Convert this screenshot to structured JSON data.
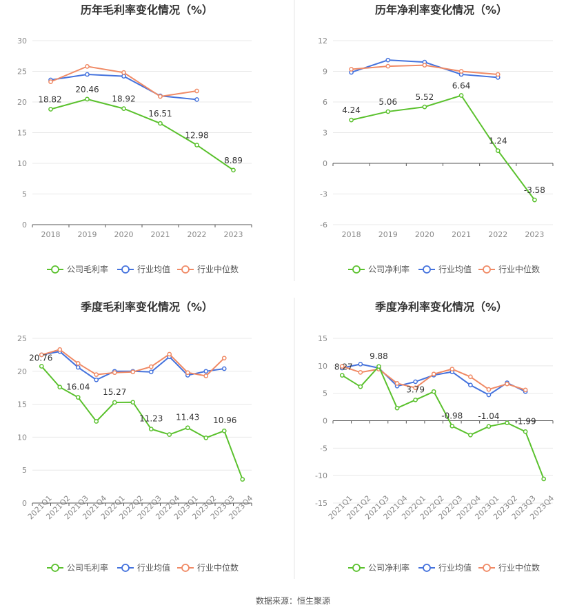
{
  "source_text": "数据来源：恒生聚源",
  "chart_data": [
    {
      "type": "line",
      "title": "历年毛利率变化情况（%）",
      "categories": [
        "2018",
        "2019",
        "2020",
        "2021",
        "2022",
        "2023"
      ],
      "ylim": [
        0,
        30
      ],
      "yticks": [
        0,
        5,
        10,
        15,
        20,
        25,
        30
      ],
      "grid": true,
      "legend_position": "bottom",
      "series": [
        {
          "name": "公司毛利率",
          "color": "#5ac12d",
          "values": [
            18.82,
            20.46,
            18.92,
            16.51,
            12.98,
            8.89
          ],
          "labels": [
            "18.82",
            "20.46",
            "18.92",
            "16.51",
            "12.98",
            "8.89"
          ]
        },
        {
          "name": "行业均值",
          "color": "#4472dd",
          "values": [
            23.6,
            24.5,
            24.2,
            21.0,
            20.4,
            null
          ]
        },
        {
          "name": "行业中位数",
          "color": "#f08a65",
          "values": [
            23.3,
            25.8,
            24.8,
            20.9,
            21.8,
            null
          ]
        }
      ]
    },
    {
      "type": "line",
      "title": "历年净利率变化情况（%）",
      "categories": [
        "2018",
        "2019",
        "2020",
        "2021",
        "2022",
        "2023"
      ],
      "ylim": [
        -6,
        12
      ],
      "yticks": [
        -6,
        -3,
        0,
        3,
        6,
        9,
        12
      ],
      "grid": true,
      "legend_position": "bottom",
      "series": [
        {
          "name": "公司净利率",
          "color": "#5ac12d",
          "values": [
            4.24,
            5.06,
            5.52,
            6.64,
            1.24,
            -3.58
          ],
          "labels": [
            "4.24",
            "5.06",
            "5.52",
            "6.64",
            "1.24",
            "-3.58"
          ]
        },
        {
          "name": "行业均值",
          "color": "#4472dd",
          "values": [
            8.9,
            10.1,
            9.9,
            8.7,
            8.4,
            null
          ]
        },
        {
          "name": "行业中位数",
          "color": "#f08a65",
          "values": [
            9.2,
            9.5,
            9.6,
            9.0,
            8.7,
            null
          ]
        }
      ]
    },
    {
      "type": "line",
      "title": "季度毛利率变化情况（%）",
      "categories": [
        "2021Q1",
        "2021Q2",
        "2021Q3",
        "2021Q4",
        "2022Q1",
        "2022Q2",
        "2022Q3",
        "2022Q4",
        "2023Q1",
        "2023Q2",
        "2023Q3",
        "2023Q4"
      ],
      "ylim": [
        0,
        25
      ],
      "yticks": [
        0,
        5,
        10,
        15,
        20,
        25
      ],
      "grid": true,
      "legend_position": "bottom",
      "series": [
        {
          "name": "公司毛利率",
          "color": "#5ac12d",
          "values": [
            20.76,
            17.6,
            16.04,
            12.4,
            15.27,
            15.3,
            11.23,
            10.4,
            11.43,
            9.9,
            10.96,
            3.6
          ],
          "labels": [
            "20.76",
            "",
            "16.04",
            "",
            "15.27",
            "",
            "11.23",
            "",
            "11.43",
            "",
            "10.96",
            ""
          ]
        },
        {
          "name": "行业均值",
          "color": "#4472dd",
          "values": [
            22.5,
            23.0,
            20.6,
            18.7,
            20.0,
            20.0,
            19.9,
            22.2,
            19.4,
            20.0,
            20.4,
            null
          ]
        },
        {
          "name": "行业中位数",
          "color": "#f08a65",
          "values": [
            22.5,
            23.3,
            21.2,
            19.5,
            19.8,
            19.9,
            20.7,
            22.6,
            19.8,
            19.3,
            22.0,
            null
          ]
        }
      ]
    },
    {
      "type": "line",
      "title": "季度净利率变化情况（%）",
      "categories": [
        "2021Q1",
        "2021Q2",
        "2021Q3",
        "2021Q4",
        "2022Q1",
        "2022Q2",
        "2022Q3",
        "2022Q4",
        "2023Q1",
        "2023Q2",
        "2023Q3",
        "2023Q4"
      ],
      "ylim": [
        -15,
        15
      ],
      "yticks": [
        -15,
        -10,
        -5,
        0,
        5,
        10,
        15
      ],
      "grid": true,
      "legend_position": "bottom",
      "series": [
        {
          "name": "公司净利率",
          "color": "#5ac12d",
          "values": [
            8.27,
            6.2,
            9.88,
            2.3,
            3.79,
            5.3,
            -0.98,
            -2.6,
            -1.04,
            -0.4,
            -1.99,
            -10.6
          ],
          "labels": [
            "8.27",
            "",
            "9.88",
            "",
            "3.79",
            "",
            "-0.98",
            "",
            "-1.04",
            "",
            "-1.99",
            ""
          ]
        },
        {
          "name": "行业均值",
          "color": "#4472dd",
          "values": [
            9.6,
            10.3,
            9.6,
            6.3,
            7.1,
            8.3,
            8.9,
            6.5,
            4.7,
            6.9,
            5.3,
            null
          ]
        },
        {
          "name": "行业中位数",
          "color": "#f08a65",
          "values": [
            9.9,
            8.8,
            9.4,
            6.8,
            6.0,
            8.5,
            9.4,
            8.0,
            5.7,
            6.7,
            5.6,
            null
          ]
        }
      ]
    }
  ]
}
